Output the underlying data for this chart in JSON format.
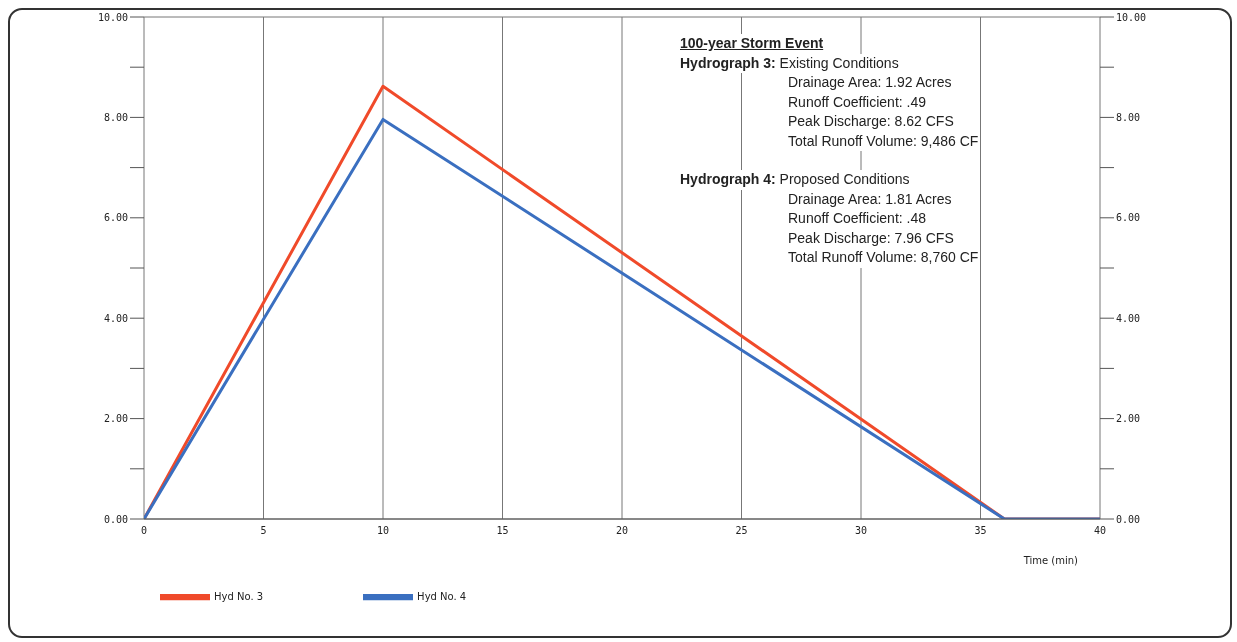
{
  "chart_data": {
    "type": "line",
    "x": [
      0,
      10,
      36,
      40
    ],
    "series": [
      {
        "name": "Hyd No. 3",
        "color": "#f04a2a",
        "values": [
          0,
          8.62,
          0,
          0
        ]
      },
      {
        "name": "Hyd No. 4",
        "color": "#3a6fc0",
        "values": [
          0,
          7.96,
          0,
          0
        ]
      }
    ],
    "xlabel": "Time (min)",
    "xlim": [
      0,
      40
    ],
    "xticks": [
      0,
      5,
      10,
      15,
      20,
      25,
      30,
      35,
      40
    ],
    "ylim": [
      0,
      10
    ],
    "yticks": [
      {
        "value": 0,
        "label": "0.00"
      },
      {
        "value": 1,
        "label": null
      },
      {
        "value": 2,
        "label": "2.00"
      },
      {
        "value": 3,
        "label": null
      },
      {
        "value": 4,
        "label": "4.00"
      },
      {
        "value": 5,
        "label": null
      },
      {
        "value": 6,
        "label": "6.00"
      },
      {
        "value": 7,
        "label": null
      },
      {
        "value": 8,
        "label": "8.00"
      },
      {
        "value": 9,
        "label": null
      },
      {
        "value": 10,
        "label": "10.00"
      }
    ],
    "y2lim": [
      0,
      10
    ],
    "y2ticks": [
      {
        "value": 0,
        "label": "0.00"
      },
      {
        "value": 1,
        "label": null
      },
      {
        "value": 2,
        "label": "2.00"
      },
      {
        "value": 3,
        "label": null
      },
      {
        "value": 4,
        "label": "4.00"
      },
      {
        "value": 5,
        "label": null
      },
      {
        "value": 6,
        "label": "6.00"
      },
      {
        "value": 7,
        "label": null
      },
      {
        "value": 8,
        "label": "8.00"
      },
      {
        "value": 9,
        "label": null
      },
      {
        "value": 10,
        "label": "10.00"
      }
    ],
    "annotations": [
      "100-year Storm Event",
      "Hydrograph 3: Existing Conditions",
      "Drainage Area:  1.92 Acres",
      "Runoff Coefficient:  .49",
      "Peak Discharge:  8.62 CFS",
      "Total Runoff Volume:  9,486 CF",
      "Hydrograph 4: Proposed Conditions",
      "Drainage Area:  1.81 Acres",
      "Runoff Coefficient:  .48",
      "Peak Discharge:  7.96 CFS",
      "Total Runoff Volume:  8,760 CF"
    ],
    "grid": true,
    "legend": "bottom left",
    "marker": "none",
    "line_style": "solid"
  }
}
